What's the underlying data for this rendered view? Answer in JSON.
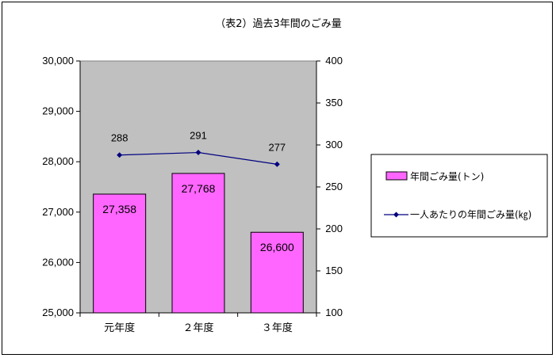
{
  "chart_data": {
    "type": "bar",
    "title": "（表2）過去3年間のごみ量",
    "categories": [
      "元年度",
      "２年度",
      "３年度"
    ],
    "series": [
      {
        "name": "年間ごみ量(トン)",
        "type": "bar",
        "axis": "left",
        "values": [
          27358,
          27768,
          26600
        ],
        "labels": [
          "27,358",
          "27,768",
          "26,600"
        ],
        "color": "#ff66ff"
      },
      {
        "name": "一人あたりの年間ごみ量(㎏)",
        "type": "line",
        "axis": "right",
        "values": [
          288,
          291,
          277
        ],
        "labels": [
          "288",
          "291",
          "277"
        ],
        "color": "#000080"
      }
    ],
    "y_left": {
      "range": [
        25000,
        30000
      ],
      "ticks": [
        25000,
        26000,
        27000,
        28000,
        29000,
        30000
      ],
      "tick_labels": [
        "25,000",
        "26,000",
        "27,000",
        "28,000",
        "29,000",
        "30,000"
      ]
    },
    "y_right": {
      "range": [
        100,
        400
      ],
      "ticks": [
        100,
        150,
        200,
        250,
        300,
        350,
        400
      ],
      "tick_labels": [
        "100",
        "150",
        "200",
        "250",
        "300",
        "350",
        "400"
      ]
    },
    "grid": false,
    "legend_position": "right",
    "plot_background": "#c0c0c0"
  }
}
